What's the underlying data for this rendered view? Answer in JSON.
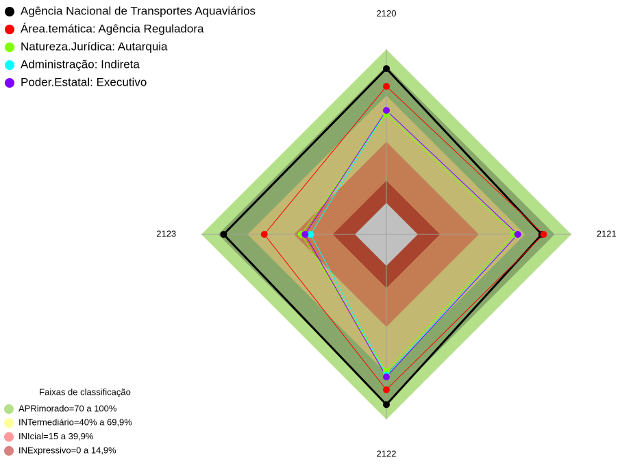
{
  "chart_data": {
    "type": "radar",
    "categories": [
      "2120",
      "2121",
      "2122",
      "2123"
    ],
    "ylim": [
      0,
      100
    ],
    "bands": [
      {
        "value": 100,
        "color": "#b5e08a"
      },
      {
        "value": 91,
        "color": "#87a86a"
      },
      {
        "value": 75,
        "color": "#c2b872"
      },
      {
        "value": 50,
        "color": "#c47d52"
      },
      {
        "value": 29,
        "color": "#a8442e"
      },
      {
        "value": 17,
        "color": "#c0c0c0"
      }
    ],
    "series": [
      {
        "name": "Agência Nacional de Transportes Aquaviários",
        "color": "#000000",
        "values": [
          89.6,
          84,
          92,
          88
        ]
      },
      {
        "name": "Área.temática: Agência Reguladora",
        "color": "#ff0000",
        "values": [
          80,
          85,
          84,
          66
        ]
      },
      {
        "name": "Natureza.Jurídica: Autarquia",
        "color": "#80ff00",
        "values": [
          65,
          69,
          74,
          46
        ]
      },
      {
        "name": "Administração: Indireta",
        "color": "#00ffff",
        "values": [
          67,
          71,
          76,
          41
        ]
      },
      {
        "name": "Poder.Estatal: Executivo",
        "color": "#8000ff",
        "values": [
          67,
          71,
          77,
          44
        ]
      }
    ],
    "classification_title": "Faixas de classificação",
    "classification_legend": [
      {
        "label": "APRimorado=70 a 100%",
        "color": "#b5e08a"
      },
      {
        "label": "INTermediário=40% a 69,9%",
        "color": "#ffff99"
      },
      {
        "label": "INIcial=15 a 39,9%",
        "color": "#ff9999"
      },
      {
        "label": "INExpressivo=0 a 14,9%",
        "color": "#d98080"
      }
    ]
  }
}
